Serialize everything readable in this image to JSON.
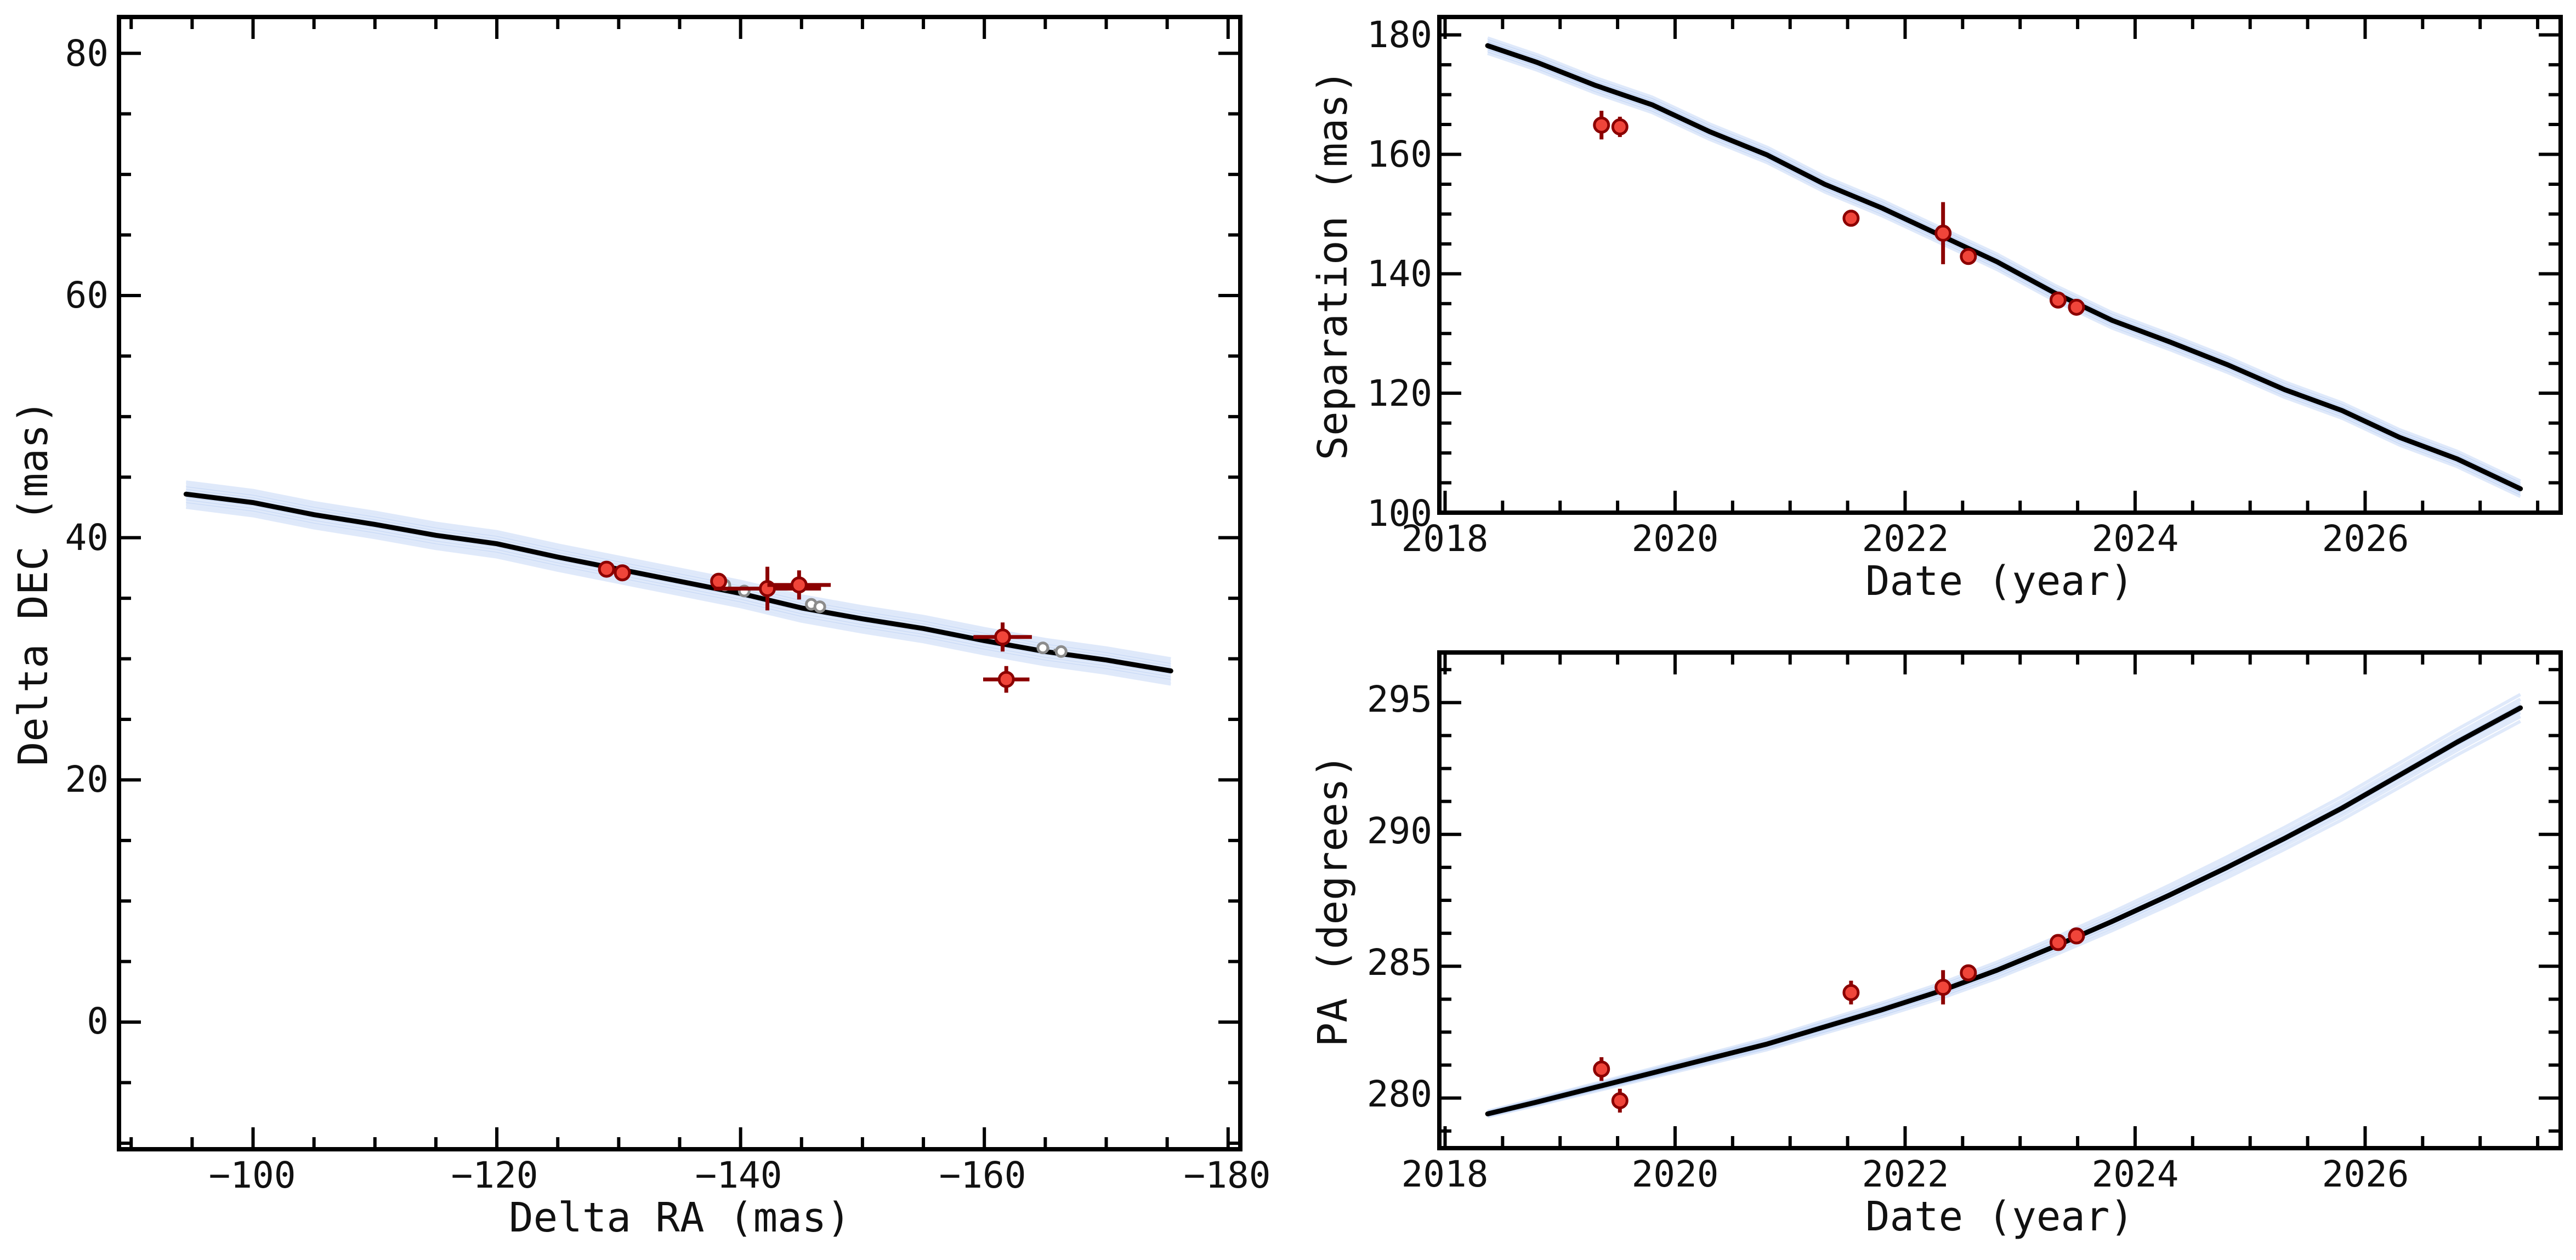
{
  "colors": {
    "model": "#000000",
    "samples": "#6f9be8",
    "data_face": "#f0453a",
    "data_edge": "#8b0000",
    "predicted": "#8c8c8c",
    "axis": "#000000"
  },
  "chart_data": [
    {
      "id": "astrometry",
      "type": "scatter",
      "xlabel": "Delta RA (mas)",
      "ylabel": "Delta DEC (mas)",
      "xlim": [
        -89,
        -181
      ],
      "ylim": [
        -10.5,
        83
      ],
      "x_ticks": [
        -100,
        -120,
        -140,
        -160,
        -180
      ],
      "y_ticks": [
        0,
        20,
        40,
        60,
        80
      ],
      "x_tick_labels": [
        "−100",
        "−120",
        "−140",
        "−160",
        "−180"
      ],
      "y_tick_labels": [
        "0",
        "20",
        "40",
        "60",
        "80"
      ],
      "grid": false,
      "series": [
        {
          "kind": "orbit_model",
          "style": "line",
          "x": [
            -94.5,
            -100,
            -105,
            -110,
            -115,
            -120,
            -125,
            -130,
            -135,
            -140,
            -145,
            -150,
            -155,
            -160,
            -165,
            -170,
            -175.3
          ],
          "y": [
            43.6,
            42.9,
            41.9,
            41.1,
            40.2,
            39.5,
            38.4,
            37.4,
            36.4,
            35.4,
            34.2,
            33.3,
            32.5,
            31.5,
            30.6,
            29.9,
            29.0
          ]
        },
        {
          "kind": "predicted_positions",
          "style": "dashed_circles",
          "points": [
            {
              "x": -138.7,
              "y": 36.1
            },
            {
              "x": -140.3,
              "y": 35.6
            },
            {
              "x": -145.8,
              "y": 34.5
            },
            {
              "x": -146.5,
              "y": 34.3
            },
            {
              "x": -164.8,
              "y": 30.9
            },
            {
              "x": -166.3,
              "y": 30.6
            }
          ]
        },
        {
          "kind": "measurements",
          "style": "errorbar",
          "points": [
            {
              "x": -129.0,
              "y": 37.4,
              "xerr": 0.5,
              "yerr": 0.4
            },
            {
              "x": -130.3,
              "y": 37.1,
              "xerr": 0.4,
              "yerr": 0.4
            },
            {
              "x": -138.2,
              "y": 36.4,
              "xerr": 0.5,
              "yerr": 0.5
            },
            {
              "x": -142.2,
              "y": 35.8,
              "xerr": 4.4,
              "yerr": 1.8
            },
            {
              "x": -144.8,
              "y": 36.1,
              "xerr": 2.6,
              "yerr": 1.2
            },
            {
              "x": -161.5,
              "y": 31.8,
              "xerr": 2.4,
              "yerr": 1.2
            },
            {
              "x": -161.8,
              "y": 28.3,
              "xerr": 1.9,
              "yerr": 1.1
            }
          ]
        }
      ]
    },
    {
      "id": "separation",
      "type": "line",
      "xlabel": "Date (year)",
      "ylabel": "Separation (mas)",
      "xlim": [
        2017.95,
        2027.7
      ],
      "ylim": [
        100,
        183
      ],
      "x_ticks": [
        2018,
        2020,
        2022,
        2024,
        2026
      ],
      "y_ticks": [
        100,
        120,
        140,
        160,
        180
      ],
      "x_tick_labels": [
        "2018",
        "2020",
        "2022",
        "2024",
        "2026"
      ],
      "y_tick_labels": [
        "100",
        "120",
        "140",
        "160",
        "180"
      ],
      "grid": false,
      "series": [
        {
          "kind": "orbit_model",
          "style": "line",
          "x": [
            2018.37,
            2018.8,
            2019.3,
            2019.8,
            2020.3,
            2020.8,
            2021.3,
            2021.8,
            2022.3,
            2022.8,
            2023.3,
            2023.8,
            2024.3,
            2024.8,
            2025.3,
            2025.8,
            2026.3,
            2026.8,
            2027.35
          ],
          "y": [
            178.2,
            175.4,
            171.6,
            168.3,
            163.8,
            159.9,
            155.0,
            151.0,
            146.5,
            142.0,
            136.8,
            132.2,
            128.6,
            124.8,
            120.6,
            117.1,
            112.6,
            109.0,
            104.0
          ]
        },
        {
          "kind": "measurements",
          "style": "errorbar",
          "points": [
            {
              "x": 2019.36,
              "y": 164.9,
              "yerr": 2.4
            },
            {
              "x": 2019.52,
              "y": 164.6,
              "yerr": 1.7
            },
            {
              "x": 2021.53,
              "y": 149.3,
              "yerr": 1.4
            },
            {
              "x": 2022.33,
              "y": 146.8,
              "yerr": 5.2
            },
            {
              "x": 2022.55,
              "y": 142.9,
              "yerr": 0.5
            },
            {
              "x": 2023.33,
              "y": 135.6,
              "yerr": 0.4
            },
            {
              "x": 2023.49,
              "y": 134.4,
              "yerr": 0.4
            }
          ]
        }
      ]
    },
    {
      "id": "position_angle",
      "type": "line",
      "xlabel": "Date (year)",
      "ylabel": "PA (degrees)",
      "xlim": [
        2017.95,
        2027.7
      ],
      "ylim": [
        278.1,
        296.9
      ],
      "x_ticks": [
        2018,
        2020,
        2022,
        2024,
        2026
      ],
      "y_ticks": [
        280,
        285,
        290,
        295
      ],
      "x_tick_labels": [
        "2018",
        "2020",
        "2022",
        "2024",
        "2026"
      ],
      "y_tick_labels": [
        "280",
        "285",
        "290",
        "295"
      ],
      "grid": false,
      "series": [
        {
          "kind": "orbit_model",
          "style": "line",
          "x": [
            2018.37,
            2018.8,
            2019.3,
            2019.8,
            2020.3,
            2020.8,
            2021.3,
            2021.8,
            2022.3,
            2022.8,
            2023.3,
            2023.8,
            2024.3,
            2024.8,
            2025.3,
            2025.8,
            2026.3,
            2026.8,
            2027.35
          ],
          "y": [
            279.4,
            279.85,
            280.4,
            280.95,
            281.5,
            282.05,
            282.7,
            283.35,
            284.05,
            284.85,
            285.75,
            286.7,
            287.7,
            288.75,
            289.85,
            291.0,
            292.25,
            293.5,
            294.8
          ]
        },
        {
          "kind": "measurements",
          "style": "errorbar",
          "points": [
            {
              "x": 2019.36,
              "y": 281.1,
              "yerr": 0.45
            },
            {
              "x": 2019.52,
              "y": 279.9,
              "yerr": 0.45
            },
            {
              "x": 2021.53,
              "y": 284.0,
              "yerr": 0.45
            },
            {
              "x": 2022.33,
              "y": 284.2,
              "yerr": 0.65
            },
            {
              "x": 2022.55,
              "y": 284.75,
              "yerr": 0.18
            },
            {
              "x": 2023.33,
              "y": 285.9,
              "yerr": 0.15
            },
            {
              "x": 2023.49,
              "y": 286.15,
              "yerr": 0.15
            }
          ]
        }
      ]
    }
  ]
}
